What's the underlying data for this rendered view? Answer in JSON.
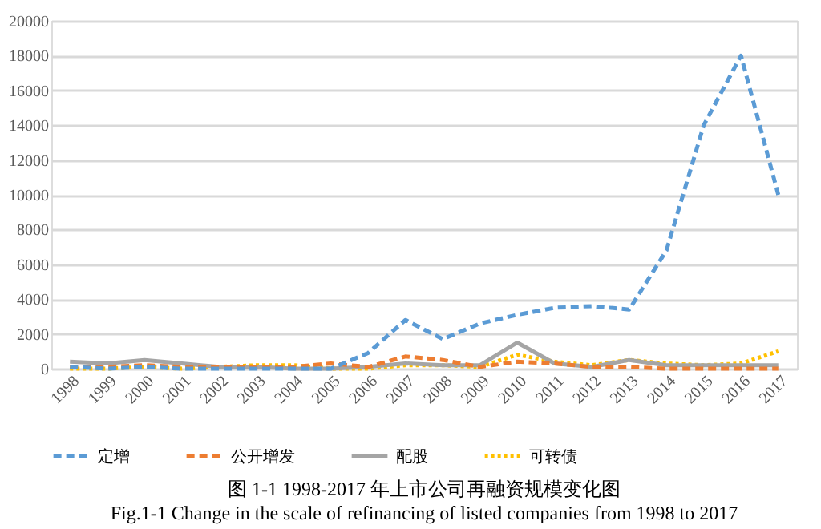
{
  "chart_data": {
    "type": "line",
    "title": "图  1-1 1998-2017 年上市公司再融资规模变化图",
    "subtitle": "Fig.1-1 Change in the scale of refinancing of listed companies from 1998 to 2017",
    "categories": [
      "1998",
      "1999",
      "2000",
      "2001",
      "2002",
      "2003",
      "2004",
      "2005",
      "2006",
      "2007",
      "2008",
      "2009",
      "2010",
      "2011",
      "2012",
      "2013",
      "2014",
      "2015",
      "2016",
      "2017"
    ],
    "series": [
      {
        "name": "定增",
        "color": "#5b9bd5",
        "line_style": "dashed",
        "values": [
          100,
          0,
          100,
          0,
          0,
          0,
          0,
          0,
          900,
          2800,
          1700,
          2600,
          3100,
          3500,
          3600,
          3400,
          6800,
          14000,
          18000,
          10000
        ]
      },
      {
        "name": "公开增发",
        "color": "#ed7d31",
        "line_style": "dashed",
        "values": [
          100,
          100,
          200,
          100,
          100,
          100,
          100,
          300,
          100,
          700,
          500,
          100,
          400,
          300,
          100,
          100,
          0,
          0,
          0,
          0
        ]
      },
      {
        "name": "配股",
        "color": "#a5a5a5",
        "line_style": "solid",
        "values": [
          400,
          300,
          500,
          300,
          100,
          100,
          0,
          0,
          100,
          300,
          200,
          200,
          1500,
          300,
          100,
          500,
          200,
          200,
          200,
          200
        ]
      },
      {
        "name": "可转债",
        "color": "#ffc000",
        "line_style": "dotted",
        "values": [
          0,
          0,
          100,
          0,
          100,
          200,
          200,
          0,
          0,
          200,
          200,
          100,
          800,
          400,
          200,
          500,
          300,
          200,
          300,
          1000
        ]
      }
    ],
    "ylim": [
      0,
      20000
    ],
    "yticks": [
      0,
      2000,
      4000,
      6000,
      8000,
      10000,
      12000,
      14000,
      16000,
      18000,
      20000
    ],
    "grid": "y",
    "legend": "bottom",
    "marker": "none"
  }
}
